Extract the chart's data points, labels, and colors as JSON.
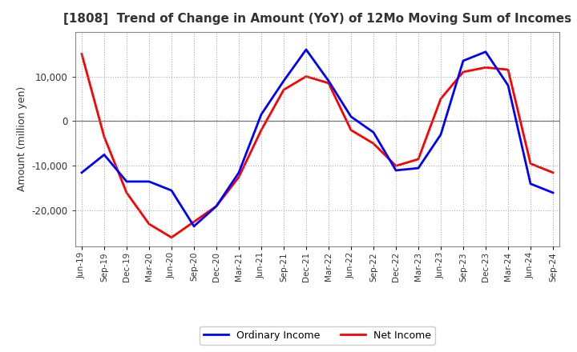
{
  "title": "[1808]  Trend of Change in Amount (YoY) of 12Mo Moving Sum of Incomes",
  "ylabel": "Amount (million yen)",
  "ordinary_income_color": "#0000FF",
  "net_income_color": "#FF0000",
  "line_width": 2.0,
  "labels": [
    "Jun-19",
    "Sep-19",
    "Dec-19",
    "Mar-20",
    "Jun-20",
    "Sep-20",
    "Dec-20",
    "Mar-21",
    "Jun-21",
    "Sep-21",
    "Dec-21",
    "Mar-22",
    "Jun-22",
    "Sep-22",
    "Dec-22",
    "Mar-23",
    "Jun-23",
    "Sep-23",
    "Dec-23",
    "Mar-24",
    "Jun-24",
    "Sep-24"
  ],
  "ordinary_income": [
    -11500,
    -7500,
    -13500,
    -13500,
    -15500,
    -23500,
    -19000,
    -11500,
    1500,
    9000,
    16000,
    9000,
    1000,
    -2500,
    -11000,
    -10500,
    -3000,
    13500,
    15500,
    8000,
    -14000,
    -16000
  ],
  "net_income": [
    15000,
    -3500,
    -16000,
    -23000,
    -26000,
    -22500,
    -19000,
    -12500,
    -2000,
    7000,
    10000,
    8500,
    -2000,
    -5000,
    -10000,
    -8500,
    5000,
    11000,
    12000,
    11500,
    -9500,
    -11500
  ],
  "ylim": [
    -28000,
    20000
  ],
  "yticks": [
    -20000,
    -10000,
    0,
    10000
  ],
  "background_color": "#FFFFFF",
  "grid_color": "#999999",
  "legend_ordinary": "Ordinary Income",
  "legend_net": "Net Income",
  "title_color": "#333333",
  "spine_color": "#888888"
}
